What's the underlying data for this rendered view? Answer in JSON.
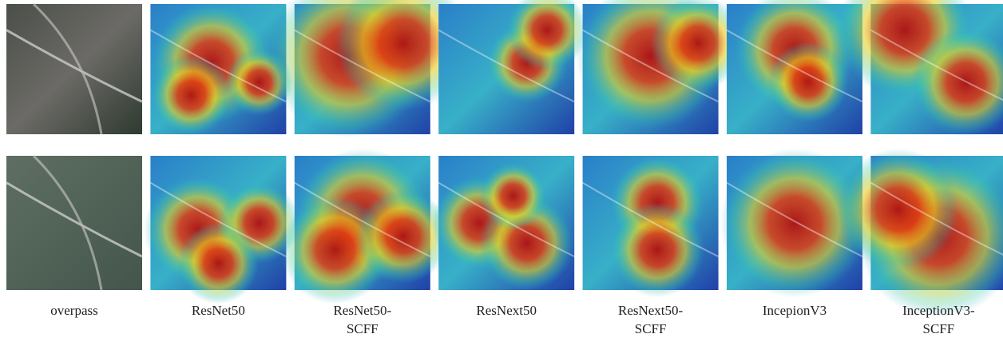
{
  "captions": [
    [
      "overpass"
    ],
    [
      "ResNet50"
    ],
    [
      "ResNet50-",
      "SCFF"
    ],
    [
      "ResNext50"
    ],
    [
      "ResNext50-",
      "SCFF"
    ],
    [
      "IncepionV3"
    ],
    [
      "InceptionV3-",
      "SCFF"
    ]
  ]
}
